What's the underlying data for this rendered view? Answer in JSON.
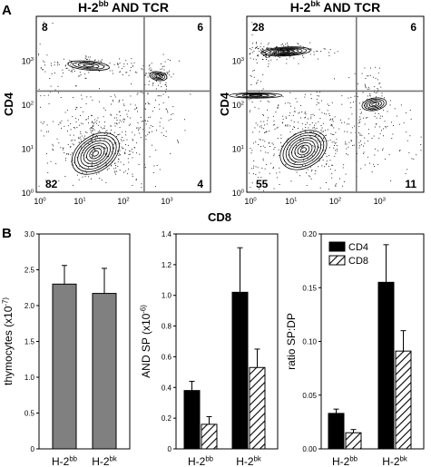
{
  "panel_labels": {
    "a": "A",
    "b": "B"
  },
  "chart_data": [
    {
      "type": "scatter",
      "title": "H-2^bb AND TCR",
      "title_parts": [
        "H-2",
        "bb",
        " AND TCR"
      ],
      "xlabel": "CD8",
      "ylabel": "CD4",
      "x_scale": "log",
      "y_scale": "log",
      "xlim": [
        1,
        10000
      ],
      "ylim": [
        1,
        10000
      ],
      "x_ticks": [
        "10^0",
        "10^1",
        "10^2",
        "10^3"
      ],
      "y_ticks": [
        "10^0",
        "10^1",
        "10^2",
        "10^3"
      ],
      "gate_x": 300,
      "gate_y": 200,
      "quadrant_percentages": {
        "top_left": "8",
        "top_right": "6",
        "bottom_left": "82",
        "bottom_right": "4"
      }
    },
    {
      "type": "scatter",
      "title": "H-2^bk AND TCR",
      "title_parts": [
        "H-2",
        "bk",
        " AND TCR"
      ],
      "xlabel": "CD8",
      "ylabel": "CD4",
      "x_scale": "log",
      "y_scale": "log",
      "xlim": [
        1,
        10000
      ],
      "ylim": [
        1,
        10000
      ],
      "x_ticks": [
        "10^0",
        "10^1",
        "10^2",
        "10^3"
      ],
      "y_ticks": [
        "10^0",
        "10^1",
        "10^2",
        "10^3"
      ],
      "gate_x": 300,
      "gate_y": 200,
      "quadrant_percentages": {
        "top_left": "28",
        "top_right": "6",
        "bottom_left": "55",
        "bottom_right": "11"
      }
    },
    {
      "type": "bar",
      "categories": [
        "H-2^bb",
        "H-2^bk"
      ],
      "values": [
        2.3,
        2.17
      ],
      "errors": [
        0.26,
        0.35
      ],
      "ylabel": "thymocytes (x10^-7)",
      "ylim": [
        0,
        3.0
      ],
      "ytick_labels": [
        "0",
        "0.5",
        "1.0",
        "1.5",
        "2.0",
        "2.5",
        "3.0"
      ],
      "color": "#808080"
    },
    {
      "type": "bar",
      "categories": [
        "H-2^bb",
        "H-2^bk"
      ],
      "series": [
        {
          "values": [
            0.38,
            1.02
          ],
          "errors": [
            0.06,
            0.29
          ],
          "fill": "solid"
        },
        {
          "values": [
            0.16,
            0.53
          ],
          "errors": [
            0.05,
            0.12
          ],
          "fill": "hatched"
        }
      ],
      "ylabel": "AND SP (x10^-6)",
      "ylim": [
        0,
        1.4
      ],
      "ytick_labels": [
        "0",
        "0.2",
        "0.4",
        "0.6",
        "0.8",
        "1.0",
        "1.2",
        "1.4"
      ]
    },
    {
      "type": "bar",
      "categories": [
        "H-2^bb",
        "H-2^bk"
      ],
      "series": [
        {
          "name": "CD4",
          "values": [
            0.033,
            0.155
          ],
          "errors": [
            0.004,
            0.035
          ],
          "fill": "solid"
        },
        {
          "name": "CD8",
          "values": [
            0.015,
            0.091
          ],
          "errors": [
            0.003,
            0.019
          ],
          "fill": "hatched"
        }
      ],
      "ylabel": "ratio SP:DP",
      "ylim": [
        0,
        0.2
      ],
      "ytick_labels": [
        "0.00",
        "0.05",
        "0.10",
        "0.15",
        "0.20"
      ],
      "legend": "top-left"
    }
  ]
}
